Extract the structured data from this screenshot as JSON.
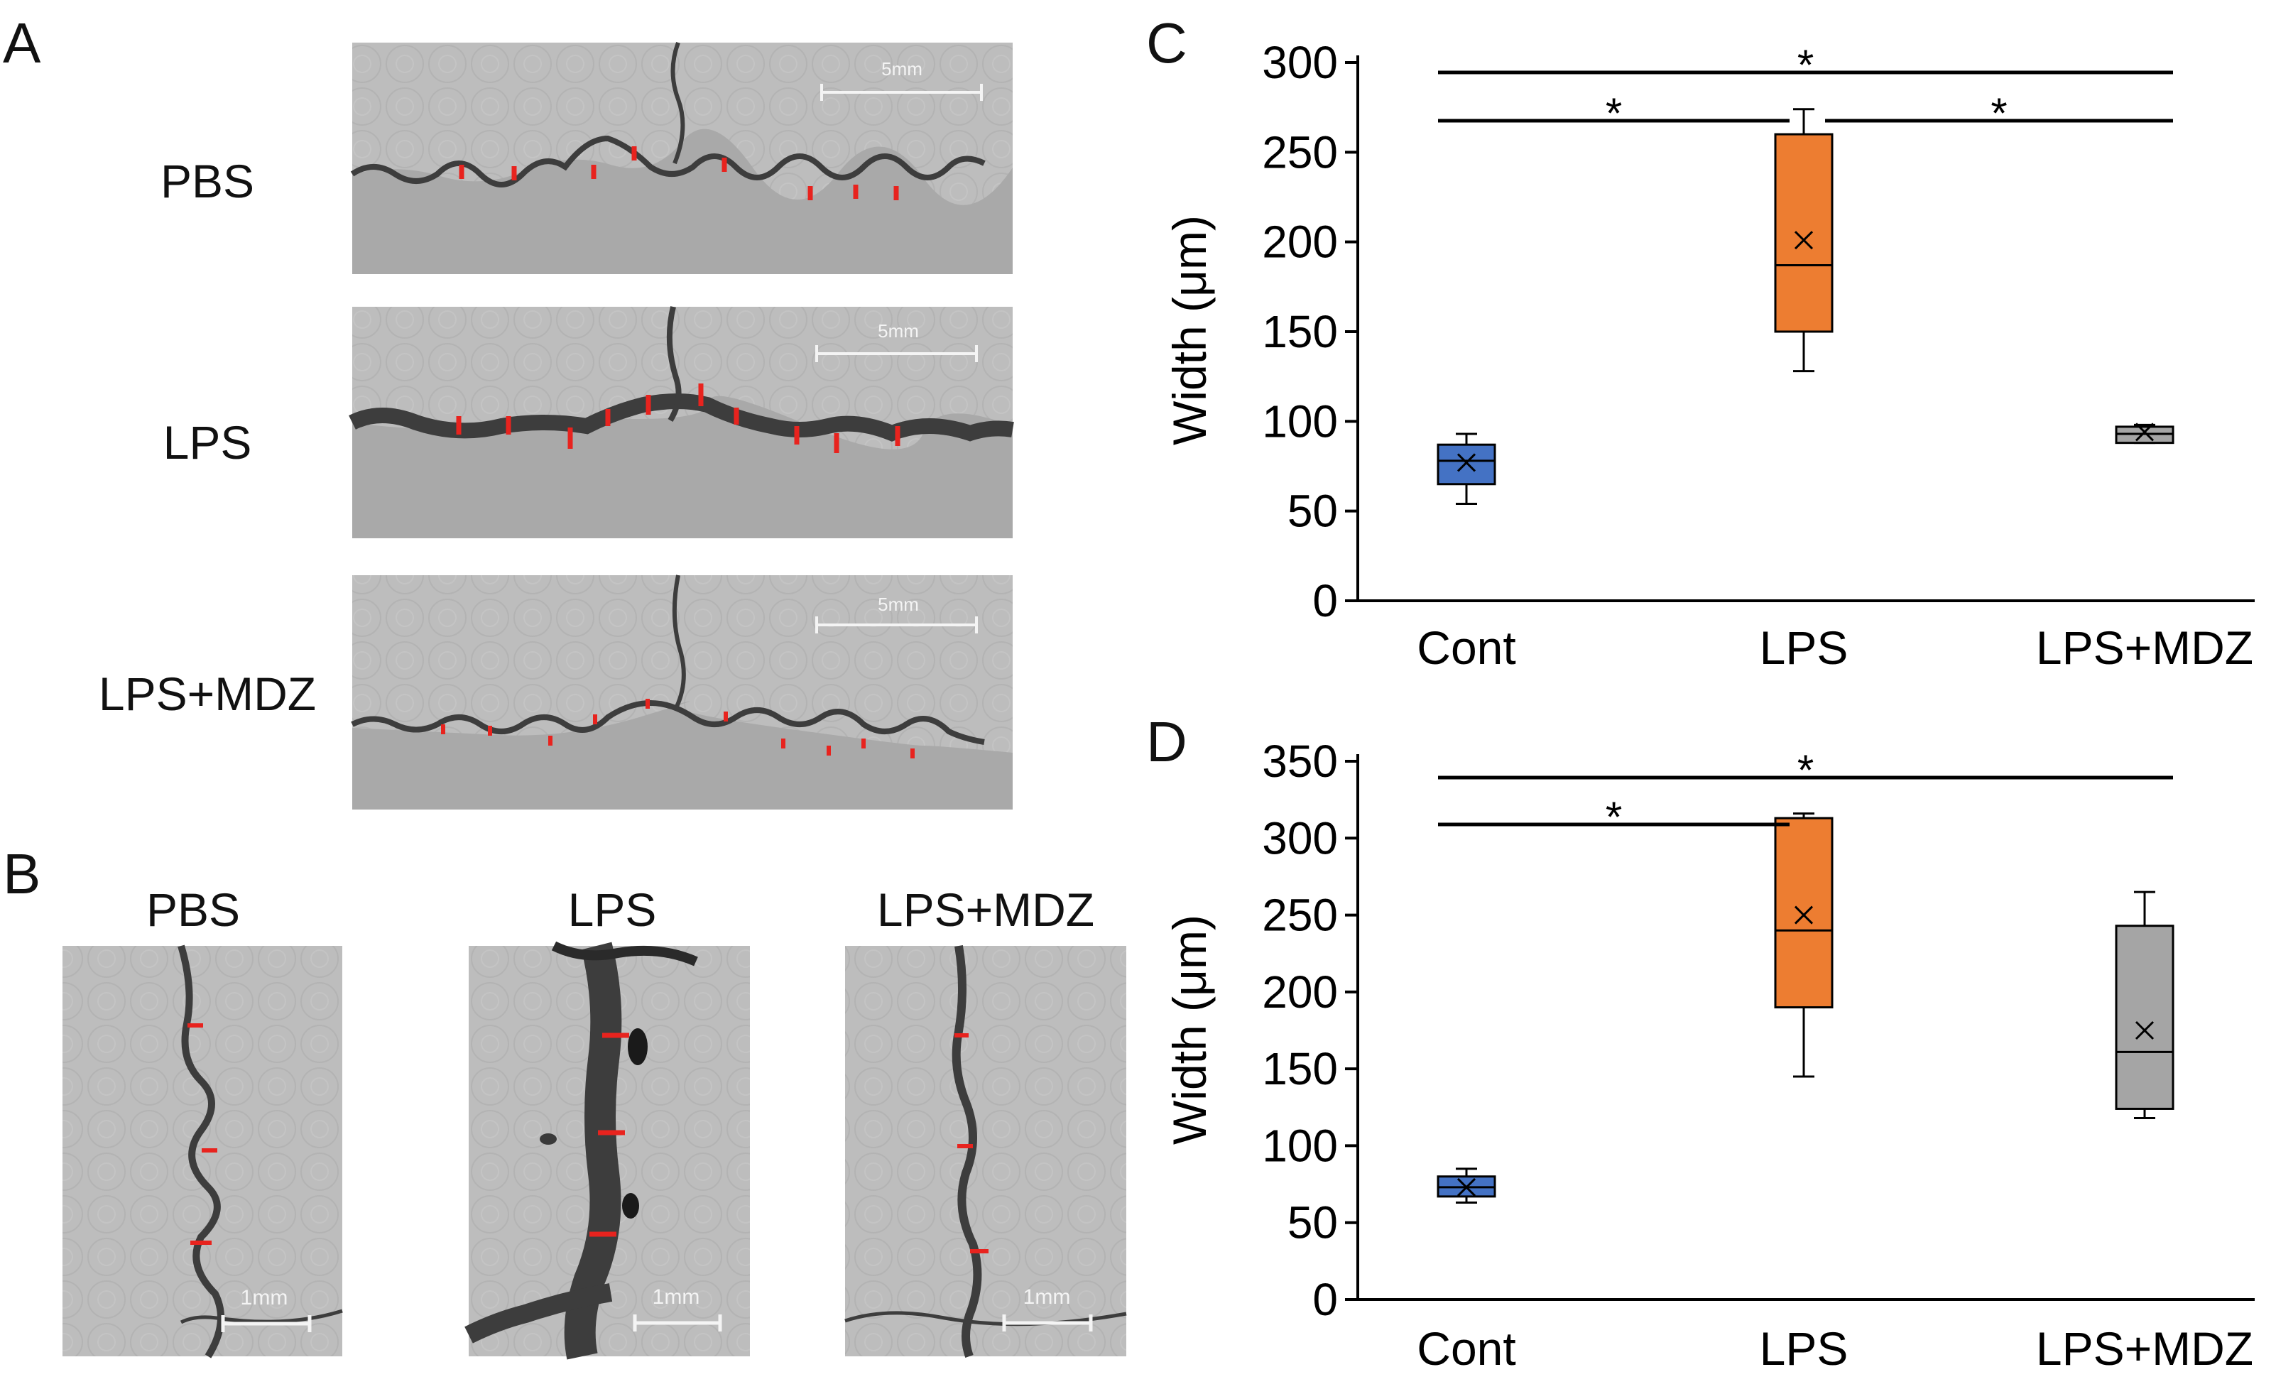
{
  "panel_letters": {
    "a": "A",
    "b": "B",
    "c": "C",
    "d": "D"
  },
  "panel_a": {
    "rows": [
      {
        "label": "PBS",
        "scale_bar": "5mm"
      },
      {
        "label": "LPS",
        "scale_bar": "5mm"
      },
      {
        "label": "LPS+MDZ",
        "scale_bar": "5mm"
      }
    ]
  },
  "panel_b": {
    "columns": [
      {
        "label": "PBS",
        "scale_bar": "1mm"
      },
      {
        "label": "LPS",
        "scale_bar": "1mm"
      },
      {
        "label": "LPS+MDZ",
        "scale_bar": "1mm"
      }
    ]
  },
  "colors": {
    "cont": "#4472c4",
    "lps": "#ed7d31",
    "mdz": "#a5a5a5",
    "marker": "#e8231e"
  },
  "chart_data": [
    {
      "panel": "C",
      "type": "box",
      "title": "",
      "xlabel": "",
      "ylabel": "Width (μm)",
      "ylim": [
        0,
        300
      ],
      "yticks": [
        0,
        50,
        100,
        150,
        200,
        250,
        300
      ],
      "categories": [
        "Cont",
        "LPS",
        "LPS+MDZ"
      ],
      "boxes": [
        {
          "name": "Cont",
          "min": 54,
          "q1": 65,
          "median": 78,
          "q3": 87,
          "max": 93,
          "mean": 77,
          "color": "#4472c4"
        },
        {
          "name": "LPS",
          "min": 128,
          "q1": 150,
          "median": 187,
          "q3": 260,
          "max": 274,
          "mean": 201,
          "color": "#ed7d31"
        },
        {
          "name": "LPS+MDZ",
          "min": 88,
          "q1": 88,
          "median": 93,
          "q3": 97,
          "max": 98,
          "mean": 94,
          "color": "#a5a5a5"
        }
      ],
      "significance": [
        {
          "from": "Cont",
          "to": "LPS+MDZ",
          "label": "*"
        },
        {
          "from": "Cont",
          "to": "LPS",
          "label": "*"
        },
        {
          "from": "LPS",
          "to": "LPS+MDZ",
          "label": "*"
        }
      ]
    },
    {
      "panel": "D",
      "type": "box",
      "title": "",
      "xlabel": "",
      "ylabel": "Width (μm)",
      "ylim": [
        0,
        350
      ],
      "yticks": [
        0,
        50,
        100,
        150,
        200,
        250,
        300,
        350
      ],
      "categories": [
        "Cont",
        "LPS",
        "LPS+MDZ"
      ],
      "boxes": [
        {
          "name": "Cont",
          "min": 63,
          "q1": 67,
          "median": 73,
          "q3": 80,
          "max": 85,
          "mean": 73,
          "color": "#4472c4"
        },
        {
          "name": "LPS",
          "min": 145,
          "q1": 190,
          "median": 240,
          "q3": 313,
          "max": 316,
          "mean": 250,
          "color": "#ed7d31"
        },
        {
          "name": "LPS+MDZ",
          "min": 118,
          "q1": 124,
          "median": 161,
          "q3": 243,
          "max": 265,
          "mean": 175,
          "color": "#a5a5a5"
        }
      ],
      "significance": [
        {
          "from": "Cont",
          "to": "LPS+MDZ",
          "label": "*"
        },
        {
          "from": "Cont",
          "to": "LPS",
          "label": "*"
        }
      ]
    }
  ]
}
